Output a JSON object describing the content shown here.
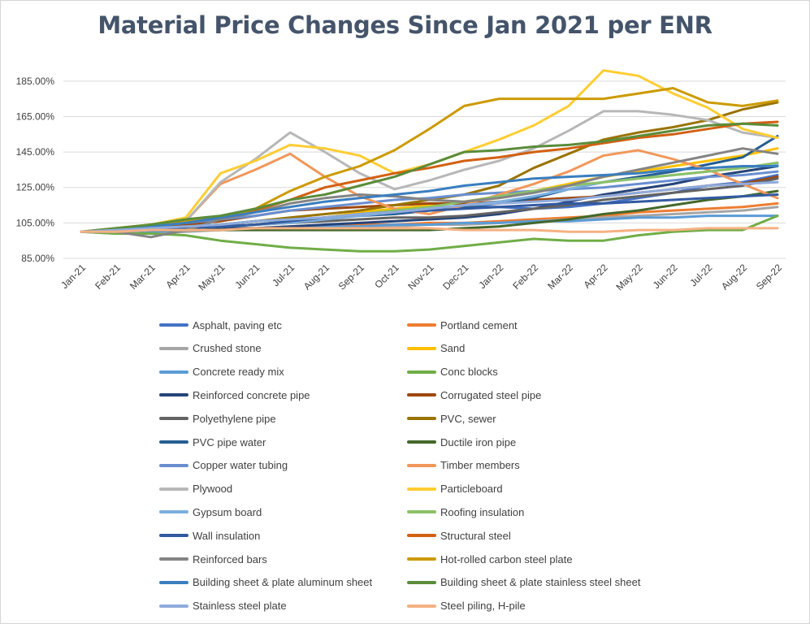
{
  "chart_data": {
    "type": "line",
    "title": "Material Price Changes Since Jan 2021 per ENR",
    "xlabel": "",
    "ylabel": "",
    "y_tick_labels": [
      "85.00%",
      "105.00%",
      "125.00%",
      "145.00%",
      "165.00%",
      "185.00%"
    ],
    "ylim": [
      85,
      195
    ],
    "grid": "horizontal",
    "legend_position": "bottom",
    "x": [
      "Jan-21",
      "Feb-21",
      "Mar-21",
      "Apr-21",
      "May-21",
      "Jun-21",
      "Jul-21",
      "Aug-21",
      "Sep-21",
      "Oct-21",
      "Nov-21",
      "Dec-21",
      "Jan-22",
      "Feb-22",
      "Mar-22",
      "Apr-22",
      "May-22",
      "Jun-22",
      "Jul-22",
      "Aug-22",
      "Sep-22"
    ],
    "series": [
      {
        "name": "Asphalt, paving etc",
        "color": "#4472c4",
        "values": [
          100,
          100,
          101,
          102,
          103,
          104,
          106,
          108,
          110,
          112,
          113,
          114,
          114,
          113,
          114,
          116,
          119,
          122,
          126,
          128,
          132
        ]
      },
      {
        "name": "Portland cement",
        "color": "#ed7d31",
        "values": [
          100,
          100,
          101,
          101,
          102,
          102,
          103,
          103,
          104,
          104,
          105,
          105,
          106,
          107,
          108,
          109,
          111,
          112,
          113,
          114,
          116
        ]
      },
      {
        "name": "Crushed stone",
        "color": "#a5a5a5",
        "values": [
          100,
          99,
          99,
          100,
          101,
          102,
          102,
          102,
          103,
          103,
          104,
          104,
          105,
          106,
          107,
          108,
          109,
          110,
          111,
          112,
          114
        ]
      },
      {
        "name": "Sand",
        "color": "#ffc000",
        "values": [
          100,
          100,
          101,
          102,
          103,
          104,
          106,
          108,
          111,
          113,
          115,
          117,
          120,
          123,
          127,
          131,
          134,
          137,
          140,
          143,
          147
        ]
      },
      {
        "name": "Concrete ready mix",
        "color": "#5b9bd5",
        "values": [
          100,
          100,
          100,
          101,
          101,
          102,
          102,
          103,
          103,
          104,
          104,
          105,
          105,
          106,
          106,
          107,
          108,
          108,
          109,
          109,
          109
        ]
      },
      {
        "name": "Conc blocks",
        "color": "#70ad47",
        "values": [
          100,
          99,
          99,
          98,
          95,
          93,
          91,
          90,
          89,
          89,
          90,
          92,
          94,
          96,
          95,
          95,
          98,
          100,
          101,
          101,
          109
        ]
      },
      {
        "name": "Reinforced concrete pipe",
        "color": "#264478",
        "values": [
          100,
          100,
          101,
          101,
          102,
          102,
          103,
          104,
          105,
          106,
          107,
          108,
          110,
          113,
          117,
          121,
          124,
          127,
          131,
          134,
          137
        ]
      },
      {
        "name": "Corrugated steel pipe",
        "color": "#9e480e",
        "values": [
          100,
          101,
          102,
          104,
          106,
          109,
          112,
          113,
          114,
          115,
          116,
          116,
          117,
          118,
          119,
          120,
          122,
          124,
          126,
          127,
          131
        ]
      },
      {
        "name": "Polyethylene pipe",
        "color": "#636363",
        "values": [
          100,
          100,
          101,
          102,
          103,
          104,
          105,
          106,
          107,
          108,
          108,
          109,
          111,
          113,
          115,
          118,
          120,
          122,
          124,
          126,
          130
        ]
      },
      {
        "name": "PVC, sewer",
        "color": "#997300",
        "values": [
          100,
          101,
          102,
          103,
          104,
          106,
          108,
          110,
          112,
          115,
          118,
          121,
          126,
          136,
          144,
          152,
          156,
          159,
          163,
          169,
          173
        ]
      },
      {
        "name": "PVC pipe water",
        "color": "#255e91",
        "values": [
          100,
          101,
          102,
          103,
          104,
          106,
          107,
          108,
          109,
          110,
          112,
          114,
          116,
          119,
          124,
          128,
          131,
          134,
          138,
          142,
          154
        ]
      },
      {
        "name": "Ductile iron pipe",
        "color": "#43682b",
        "values": [
          100,
          100,
          101,
          101,
          101,
          101,
          101,
          101,
          101,
          101,
          101,
          102,
          103,
          105,
          107,
          110,
          112,
          115,
          118,
          120,
          123
        ]
      },
      {
        "name": "Copper water tubing",
        "color": "#698ed0",
        "values": [
          100,
          101,
          103,
          105,
          107,
          109,
          112,
          114,
          116,
          118,
          119,
          121,
          122,
          123,
          124,
          125,
          127,
          129,
          131,
          132,
          134
        ]
      },
      {
        "name": "Timber members",
        "color": "#f1975a",
        "values": [
          100,
          101,
          103,
          106,
          127,
          135,
          144,
          131,
          120,
          113,
          110,
          115,
          121,
          127,
          134,
          143,
          146,
          141,
          135,
          127,
          119
        ]
      },
      {
        "name": "Plywood",
        "color": "#b7b7b7",
        "values": [
          100,
          101,
          103,
          106,
          128,
          141,
          156,
          145,
          133,
          124,
          129,
          135,
          140,
          147,
          157,
          168,
          168,
          166,
          163,
          156,
          153
        ]
      },
      {
        "name": "Particleboard",
        "color": "#ffcd33",
        "values": [
          100,
          102,
          104,
          108,
          133,
          140,
          149,
          147,
          143,
          133,
          138,
          145,
          152,
          160,
          171,
          191,
          188,
          178,
          170,
          158,
          153
        ]
      },
      {
        "name": "Gypsum board",
        "color": "#7cafdd",
        "values": [
          100,
          100,
          101,
          102,
          103,
          104,
          105,
          107,
          109,
          111,
          113,
          115,
          117,
          120,
          124,
          128,
          130,
          132,
          134,
          136,
          138
        ]
      },
      {
        "name": "Roofing insulation",
        "color": "#8cc168",
        "values": [
          100,
          100,
          101,
          102,
          103,
          104,
          106,
          108,
          110,
          112,
          114,
          117,
          120,
          123,
          126,
          128,
          130,
          132,
          134,
          136,
          139
        ]
      },
      {
        "name": "Wall insulation",
        "color": "#335aa1",
        "values": [
          100,
          100,
          101,
          102,
          103,
          104,
          106,
          108,
          110,
          111,
          112,
          113,
          114,
          115,
          116,
          116,
          117,
          118,
          119,
          120,
          121
        ]
      },
      {
        "name": "Structural steel",
        "color": "#d26012",
        "values": [
          100,
          101,
          103,
          105,
          108,
          112,
          118,
          125,
          129,
          133,
          136,
          140,
          142,
          145,
          147,
          150,
          153,
          155,
          158,
          161,
          162
        ]
      },
      {
        "name": "Reinforced bars",
        "color": "#848484",
        "values": [
          100,
          100,
          97,
          101,
          107,
          111,
          116,
          119,
          121,
          120,
          118,
          117,
          119,
          122,
          126,
          131,
          135,
          139,
          143,
          147,
          144
        ]
      },
      {
        "name": "Hot-rolled carbon steel plate",
        "color": "#cc9a00",
        "values": [
          100,
          102,
          104,
          106,
          108,
          113,
          123,
          131,
          137,
          146,
          158,
          171,
          175,
          175,
          175,
          175,
          178,
          181,
          173,
          171,
          174
        ]
      },
      {
        "name": "Building sheet & plate aluminum sheet",
        "color": "#3a7ebf",
        "values": [
          100,
          101,
          103,
          105,
          108,
          111,
          114,
          117,
          119,
          121,
          123,
          126,
          128,
          130,
          131,
          132,
          133,
          135,
          136,
          137,
          137
        ]
      },
      {
        "name": "Building sheet & plate stainless steel sheet",
        "color": "#5a8c3a",
        "values": [
          100,
          102,
          104,
          107,
          109,
          113,
          118,
          121,
          126,
          131,
          138,
          145,
          146,
          148,
          149,
          151,
          154,
          157,
          160,
          161,
          160
        ]
      },
      {
        "name": "Stainless steel plate",
        "color": "#8fabdc",
        "values": [
          100,
          101,
          102,
          103,
          104,
          106,
          107,
          108,
          110,
          111,
          113,
          115,
          116,
          117,
          118,
          120,
          122,
          124,
          126,
          127,
          128
        ]
      },
      {
        "name": "Steel piling, H-pile",
        "color": "#f4b183",
        "values": [
          100,
          100,
          101,
          101,
          101,
          102,
          102,
          102,
          102,
          102,
          102,
          101,
          101,
          101,
          100,
          100,
          101,
          101,
          102,
          102,
          102
        ]
      }
    ]
  }
}
